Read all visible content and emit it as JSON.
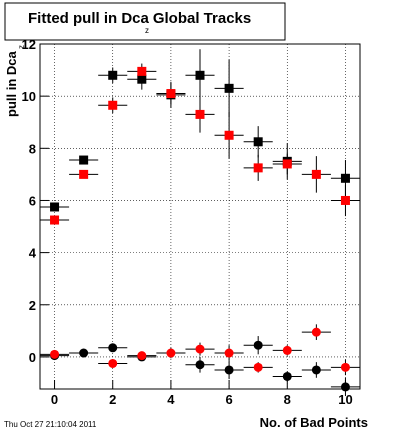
{
  "chart_data": {
    "type": "scatter",
    "title": "Fitted pull in Dca",
    "title_subscript": "z",
    "title_suffix": "Global Tracks",
    "y_label": "pull in Dca",
    "y_label_subscript": "z",
    "x_label": "No. of Bad Points",
    "timestamp": "Thu Oct 27 21:10:04 2011",
    "xlim": [
      -0.5,
      10.5
    ],
    "ylim": [
      -1.23,
      12
    ],
    "xticks": [
      0,
      2,
      4,
      6,
      8,
      10
    ],
    "yticks": [
      0,
      2,
      4,
      6,
      8,
      10,
      12
    ],
    "grid": true,
    "series": [
      {
        "color": "#000000",
        "marker": "square",
        "x": [
          0,
          1,
          2,
          3,
          4,
          5,
          6,
          7,
          8,
          10
        ],
        "values": [
          5.75,
          7.55,
          10.8,
          10.65,
          10.05,
          10.8,
          10.3,
          8.25,
          7.5,
          6.85
        ],
        "errors": [
          0.1,
          0.1,
          0.3,
          0.4,
          0.5,
          1.0,
          1.1,
          0.6,
          0.7,
          0.7
        ]
      },
      {
        "color": "#ff0000",
        "marker": "square",
        "x": [
          0,
          1,
          2,
          3,
          4,
          5,
          6,
          7,
          8,
          9,
          10
        ],
        "values": [
          5.25,
          7.0,
          9.65,
          10.95,
          10.1,
          9.3,
          8.5,
          7.25,
          7.4,
          7.0,
          6.0
        ],
        "errors": [
          0.1,
          0.1,
          0.3,
          0.3,
          0.4,
          0.7,
          0.9,
          0.5,
          0.4,
          0.7,
          0.6
        ]
      },
      {
        "color": "#000000",
        "marker": "circle",
        "x": [
          0,
          1,
          2,
          3,
          5,
          6,
          7,
          8,
          9,
          10
        ],
        "values": [
          0.05,
          0.15,
          0.35,
          0.0,
          -0.3,
          -0.5,
          0.45,
          -0.75,
          -0.5,
          -1.15
        ],
        "errors": [
          0.05,
          0.05,
          0.15,
          0.15,
          0.3,
          0.35,
          0.35,
          0.2,
          0.3,
          0.35
        ]
      },
      {
        "color": "#ff0000",
        "marker": "circle",
        "x": [
          0,
          2,
          3,
          4,
          5,
          6,
          7,
          8,
          9,
          10
        ],
        "values": [
          0.1,
          -0.25,
          0.05,
          0.15,
          0.3,
          0.15,
          -0.4,
          0.25,
          0.95,
          -0.4
        ],
        "errors": [
          0.05,
          0.1,
          0.15,
          0.2,
          0.25,
          0.3,
          0.2,
          0.2,
          0.3,
          0.3
        ]
      }
    ]
  }
}
